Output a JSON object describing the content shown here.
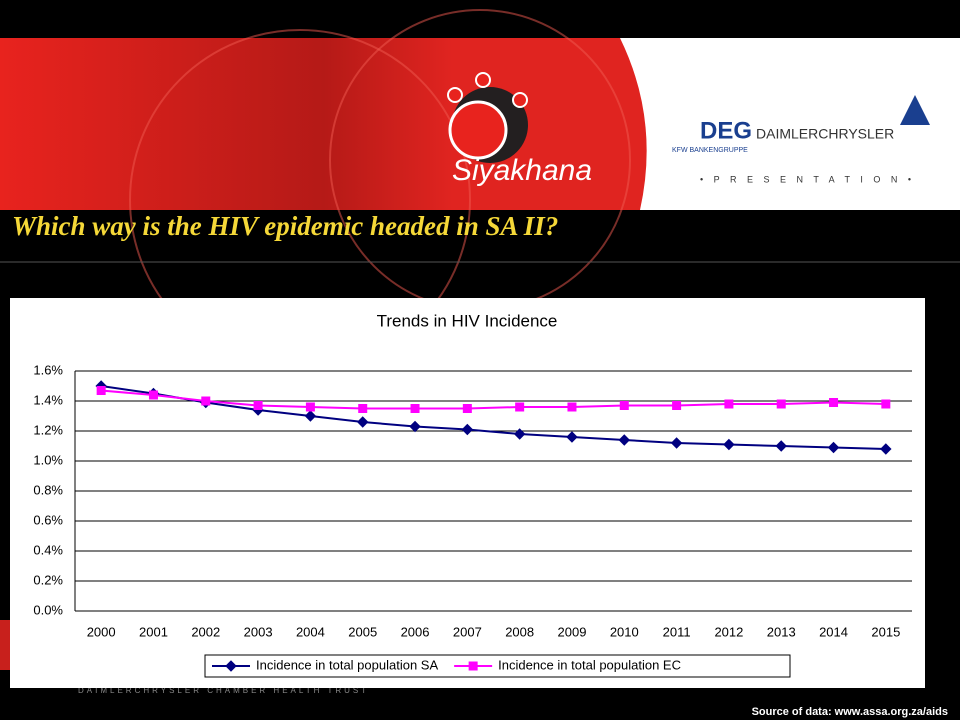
{
  "slide": {
    "heading": "Which way is the HIV epidemic headed in SA II?",
    "logo_text": "Siyakhana",
    "presentation": "• P R E S E N T A T I O N •",
    "sponsor_1": "DEG",
    "sponsor_1_sub": "KFW BANKENGRUPPE",
    "sponsor_2": "DAIMLERCHRYSLER",
    "footer": "DAIMLERCHRYSLER CHAMBER HEALTH TRUST",
    "source": "Source of data: www.assa.org.za/aids"
  },
  "chart_data": {
    "type": "line",
    "title": "Trends in HIV Incidence",
    "categories": [
      "2000",
      "2001",
      "2002",
      "2003",
      "2004",
      "2005",
      "2006",
      "2007",
      "2008",
      "2009",
      "2010",
      "2011",
      "2012",
      "2013",
      "2014",
      "2015"
    ],
    "series": [
      {
        "name": "Incidence in total population SA",
        "color": "#000080",
        "marker": "diamond",
        "values": [
          1.5,
          1.45,
          1.39,
          1.34,
          1.3,
          1.26,
          1.23,
          1.21,
          1.18,
          1.16,
          1.14,
          1.12,
          1.11,
          1.1,
          1.09,
          1.08
        ]
      },
      {
        "name": "Incidence in total population EC",
        "color": "#ff00ff",
        "marker": "square",
        "values": [
          1.47,
          1.44,
          1.4,
          1.37,
          1.36,
          1.35,
          1.35,
          1.35,
          1.36,
          1.36,
          1.37,
          1.37,
          1.38,
          1.38,
          1.39,
          1.38
        ]
      }
    ],
    "ylim": [
      0,
      1.6
    ],
    "yticks": [
      {
        "value": 0,
        "label": "0.0%"
      },
      {
        "value": 0.2,
        "label": "0.2%"
      },
      {
        "value": 0.4,
        "label": "0.4%"
      },
      {
        "value": 0.6,
        "label": "0.6%"
      },
      {
        "value": 0.8,
        "label": "0.8%"
      },
      {
        "value": 1.0,
        "label": "1.0%"
      },
      {
        "value": 1.2,
        "label": "1.2%"
      },
      {
        "value": 1.4,
        "label": "1.4%"
      },
      {
        "value": 1.6,
        "label": "1.6%"
      }
    ],
    "grid": true,
    "legend": "bottom"
  }
}
